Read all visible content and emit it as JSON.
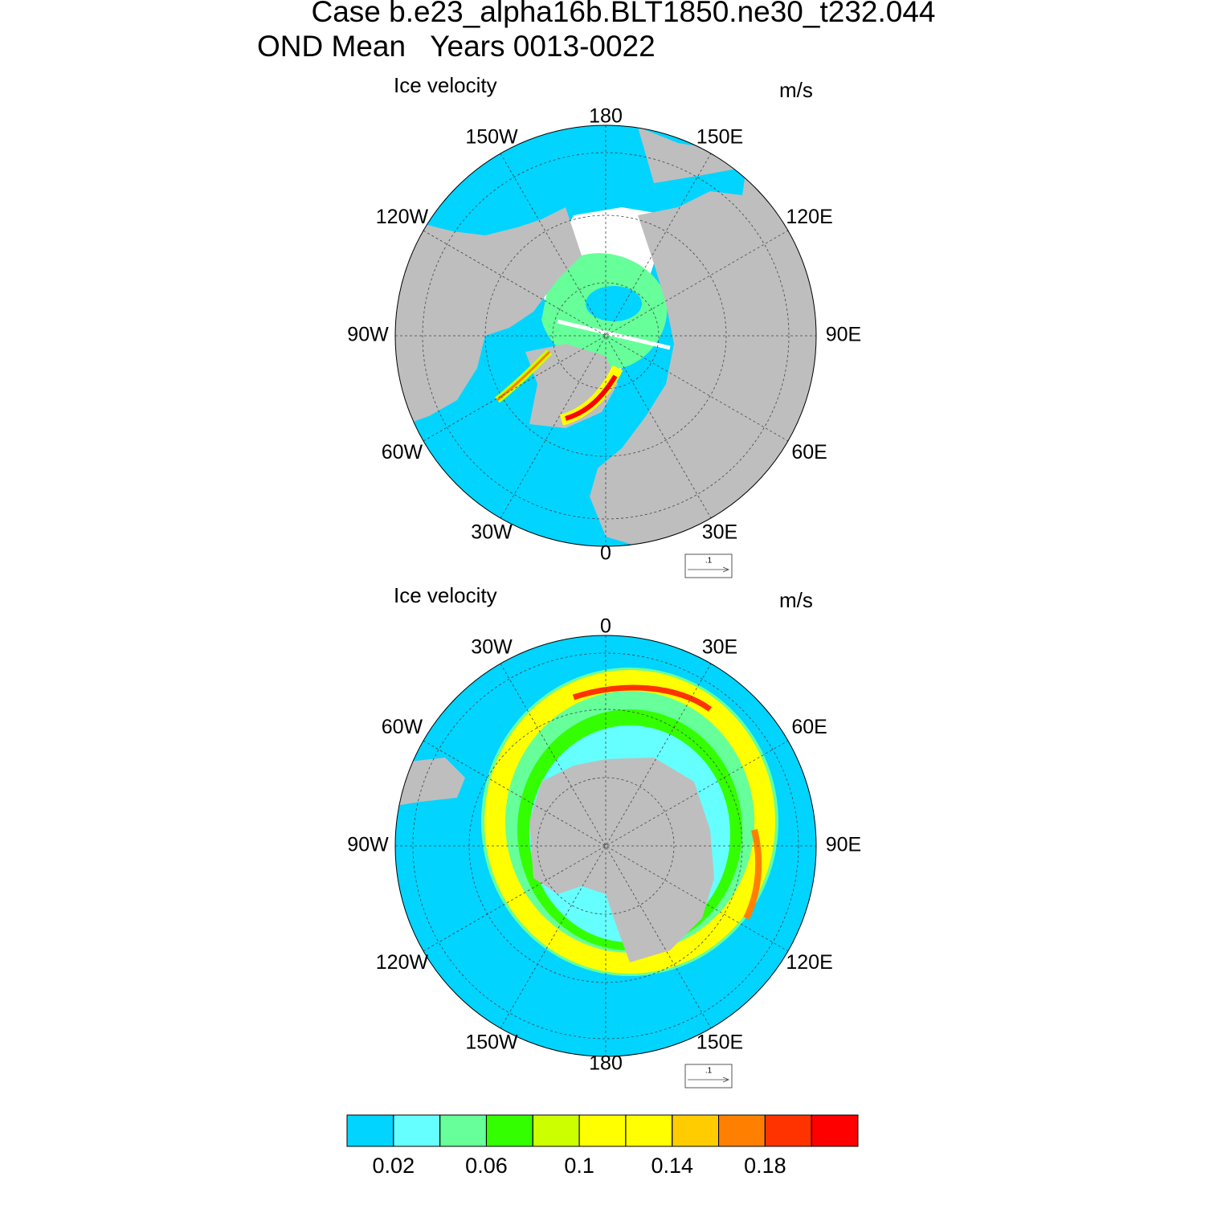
{
  "title": "Case b.e23_alpha16b.BLT1850.ne30_t232.044",
  "subtitle": "OND Mean   Years 0013-0022",
  "panels": [
    {
      "left_title": "Ice velocity",
      "right_title": "m/s",
      "lon_labels": [
        "180",
        "150E",
        "120E",
        "90E",
        "60E",
        "30E",
        "0",
        "30W",
        "60W",
        "90W",
        "120W",
        "150W"
      ],
      "ref_vector_label": ".1"
    },
    {
      "left_title": "Ice velocity",
      "right_title": "m/s",
      "lon_labels": [
        "0",
        "30E",
        "60E",
        "90E",
        "120E",
        "150E",
        "180",
        "150W",
        "120W",
        "90W",
        "60W",
        "30W"
      ],
      "ref_vector_label": ".1"
    }
  ],
  "colorbar": {
    "colors": [
      "#00d4ff",
      "#66ffff",
      "#66ff99",
      "#33ff00",
      "#ccff00",
      "#ffff00",
      "#ffff00",
      "#ffcc00",
      "#ff8000",
      "#ff3300",
      "#ff0000"
    ],
    "levels": [
      0.02,
      0.04,
      0.06,
      0.08,
      0.1,
      0.12,
      0.14,
      0.16,
      0.18,
      0.2
    ],
    "tick_labels": [
      0.02,
      0.06,
      0.1,
      0.14,
      0.18
    ]
  }
}
